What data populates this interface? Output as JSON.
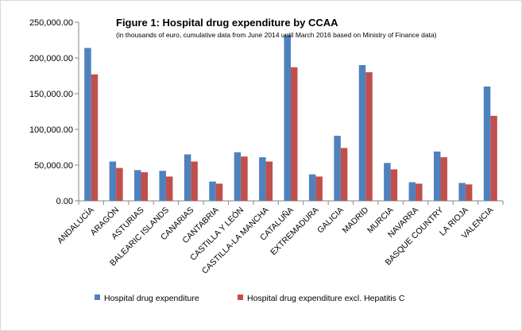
{
  "chart_data": {
    "type": "bar",
    "title": "Figure 1: Hospital drug expenditure by CCAA",
    "subtitle": "(in thousands of euro, cumulative data from June 2014 until March 2016 based on Ministry of Finance data)",
    "xlabel": "",
    "ylabel": "",
    "ylim": [
      0,
      250000
    ],
    "yticks": [
      0,
      50000,
      100000,
      150000,
      200000,
      250000
    ],
    "ytick_labels": [
      "0.00",
      "50,000.00",
      "100,000.00",
      "150,000.00",
      "200,000.00",
      "250,000.00"
    ],
    "grid": false,
    "legend_position": "bottom",
    "categories": [
      "ANDALUCÍA",
      "ARAGÓN",
      "ASTURIAS",
      "BALEARIC ISLANDS",
      "CANARIAS",
      "CANTABRIA",
      "CASTILLA Y LEÓN",
      "CASTILLA-LA MANCHA",
      "CATALUÑA",
      "EXTREMADURA",
      "GALICIA",
      "MADRID",
      "MURCIA",
      "NAVARRA",
      "BASQUE COUNTRY",
      "LA RIOJA",
      "VALENCIA"
    ],
    "series": [
      {
        "name": "Hospital drug expenditure",
        "color": "#4f81bd",
        "values": [
          214000,
          55000,
          43000,
          42000,
          65000,
          27000,
          68000,
          61000,
          232000,
          37000,
          91000,
          190000,
          53000,
          26000,
          69000,
          25000,
          160000
        ]
      },
      {
        "name": "Hospital drug expenditure excl. Hepatitis C",
        "color": "#c0504d",
        "values": [
          177000,
          46000,
          40000,
          34000,
          55000,
          24000,
          62000,
          55000,
          187000,
          34000,
          74000,
          180000,
          44000,
          24000,
          61000,
          23000,
          119000
        ]
      }
    ]
  }
}
